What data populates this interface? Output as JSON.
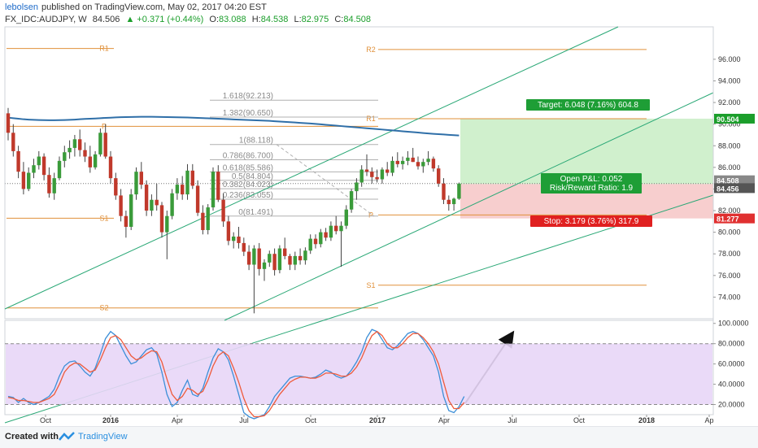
{
  "header": {
    "author": "lebolsen",
    "published": "published on TradingView.com, May 02, 2017 04:20 EST",
    "symbol": "FX_IDC:AUDJPY, W",
    "last": "84.506",
    "change": "▲ +0.371 (+0.44%)",
    "open_label": "O:",
    "open": "83.088",
    "high_label": "H:",
    "high": "84.538",
    "low_label": "L:",
    "low": "82.975",
    "close_label": "C:",
    "close": "84.508"
  },
  "footer": {
    "created_with": "Created with",
    "brand": "TradingView"
  },
  "colors": {
    "up": "#3a9b3a",
    "down": "#c0392b",
    "ma": "#2f6fa8",
    "channel": "#2aa876",
    "pivot": "#e0903a",
    "fib": "#b0b0b0",
    "target_zone": "#c8edc4",
    "stop_zone": "#f6c6c6",
    "stoch_k": "#3c8fd8",
    "stoch_d": "#ef5a3a",
    "stoch_band": "#e8d6f7"
  },
  "chart_data": [
    {
      "type": "candlestick",
      "ylim": [
        72,
        99
      ],
      "y_ticks": [
        "74.000",
        "76.000",
        "78.000",
        "80.000",
        "82.000",
        "84.000",
        "86.000",
        "88.000",
        "90.000",
        "92.000",
        "94.000",
        "96.000"
      ],
      "x_ticks": [
        "Oct",
        "2016",
        "Apr",
        "Jul",
        "Oct",
        "2017",
        "Apr",
        "Jul",
        "Oct",
        "2018",
        "Ap"
      ],
      "price_tags": [
        {
          "label": "90.504",
          "value": 90.504,
          "color": "#1b9e2b"
        },
        {
          "label": "84.508",
          "value": 84.508,
          "color": "#888888"
        },
        {
          "label": "84.456",
          "value": 84.456,
          "color": "#555555"
        },
        {
          "label": "81.277",
          "value": 81.277,
          "color": "#e03030"
        }
      ],
      "pivots": [
        {
          "label": "R1",
          "value": 97.0
        },
        {
          "label": "P",
          "value": 89.8
        },
        {
          "label": "S1",
          "value": 81.3
        },
        {
          "label": "S2",
          "value": 73.0
        },
        {
          "label": "R2",
          "value": 96.9
        },
        {
          "label": "R1",
          "value": 90.5
        },
        {
          "label": "P",
          "value": 81.6
        },
        {
          "label": "S1",
          "value": 75.1
        }
      ],
      "fib_levels": [
        {
          "label": "1.618(92.213)",
          "value": 92.213
        },
        {
          "label": "1.382(90.650)",
          "value": 90.65
        },
        {
          "label": "1(88.118)",
          "value": 88.118
        },
        {
          "label": "0.786(86.700)",
          "value": 86.7
        },
        {
          "label": "0.618(85.586)",
          "value": 85.586
        },
        {
          "label": "0.5(84.804)",
          "value": 84.804
        },
        {
          "label": "0.382(84.023)",
          "value": 84.023
        },
        {
          "label": "0.236(83.055)",
          "value": 83.055
        },
        {
          "label": "0(81.491)",
          "value": 81.491
        }
      ],
      "position": {
        "target_label": "Target: 6.048 (7.16%) 604.8",
        "pnl_label": "Open P&L: 0.052",
        "rr_label": "Risk/Reward Ratio: 1.9",
        "stop_label": "Stop: 3.179 (3.76%) 317.9",
        "entry": 84.46,
        "target": 90.504,
        "stop": 81.277
      },
      "ohlc": [
        [
          91.0,
          91.5,
          88.5,
          89.2
        ],
        [
          89.2,
          90.0,
          87.0,
          87.5
        ],
        [
          87.5,
          88.0,
          85.0,
          85.6
        ],
        [
          85.6,
          86.5,
          83.5,
          84.0
        ],
        [
          84.0,
          86.0,
          83.8,
          85.5
        ],
        [
          85.5,
          86.8,
          85.0,
          86.2
        ],
        [
          86.2,
          87.5,
          85.8,
          87.0
        ],
        [
          87.0,
          87.3,
          84.8,
          85.3
        ],
        [
          85.3,
          86.0,
          83.2,
          83.6
        ],
        [
          83.6,
          85.5,
          83.0,
          85.0
        ],
        [
          85.0,
          87.0,
          84.8,
          86.6
        ],
        [
          86.6,
          88.0,
          86.0,
          87.4
        ],
        [
          87.4,
          88.5,
          86.8,
          87.8
        ],
        [
          87.8,
          89.0,
          87.0,
          88.6
        ],
        [
          88.6,
          89.5,
          87.0,
          87.6
        ],
        [
          87.6,
          88.3,
          86.5,
          87.0
        ],
        [
          87.0,
          88.0,
          85.5,
          86.0
        ],
        [
          86.0,
          87.5,
          85.8,
          87.2
        ],
        [
          87.2,
          89.6,
          87.0,
          89.2
        ],
        [
          89.2,
          90.0,
          86.8,
          87.0
        ],
        [
          87.0,
          87.5,
          84.5,
          85.0
        ],
        [
          85.0,
          85.5,
          83.0,
          83.4
        ],
        [
          83.4,
          84.0,
          81.0,
          81.5
        ],
        [
          81.5,
          82.0,
          79.5,
          80.5
        ],
        [
          80.5,
          84.0,
          80.2,
          83.5
        ],
        [
          83.5,
          86.0,
          83.0,
          85.6
        ],
        [
          85.6,
          86.5,
          84.0,
          84.4
        ],
        [
          84.4,
          84.8,
          81.5,
          82.0
        ],
        [
          82.0,
          83.5,
          81.5,
          83.0
        ],
        [
          83.0,
          84.5,
          82.0,
          82.5
        ],
        [
          82.5,
          82.8,
          79.5,
          80.0
        ],
        [
          80.0,
          82.0,
          77.5,
          81.5
        ],
        [
          81.5,
          84.0,
          81.2,
          83.6
        ],
        [
          83.6,
          85.0,
          83.0,
          84.4
        ],
        [
          84.4,
          85.2,
          83.0,
          83.5
        ],
        [
          83.5,
          86.3,
          83.0,
          85.7
        ],
        [
          85.7,
          86.3,
          84.0,
          84.3
        ],
        [
          84.3,
          84.8,
          81.5,
          81.8
        ],
        [
          81.8,
          82.5,
          79.8,
          80.2
        ],
        [
          80.2,
          82.6,
          79.8,
          82.3
        ],
        [
          82.3,
          86.0,
          82.0,
          85.6
        ],
        [
          85.6,
          86.2,
          82.8,
          83.0
        ],
        [
          83.0,
          83.6,
          80.5,
          81.0
        ],
        [
          81.0,
          81.5,
          78.8,
          79.2
        ],
        [
          79.2,
          80.0,
          78.5,
          79.6
        ],
        [
          79.6,
          80.5,
          78.5,
          79.0
        ],
        [
          79.0,
          79.5,
          77.8,
          78.2
        ],
        [
          78.2,
          78.8,
          76.5,
          77.0
        ],
        [
          77.0,
          78.8,
          72.5,
          78.5
        ],
        [
          78.5,
          79.0,
          76.0,
          76.6
        ],
        [
          76.6,
          77.5,
          75.5,
          77.2
        ],
        [
          77.2,
          78.3,
          76.8,
          78.0
        ],
        [
          78.0,
          78.5,
          76.0,
          76.5
        ],
        [
          76.5,
          78.8,
          76.2,
          78.5
        ],
        [
          78.5,
          79.5,
          77.5,
          77.8
        ],
        [
          77.8,
          78.0,
          76.5,
          77.0
        ],
        [
          77.0,
          78.2,
          76.5,
          77.8
        ],
        [
          77.8,
          78.5,
          77.0,
          77.4
        ],
        [
          77.4,
          78.6,
          77.0,
          78.3
        ],
        [
          78.3,
          79.8,
          78.0,
          79.4
        ],
        [
          79.4,
          79.8,
          78.5,
          78.9
        ],
        [
          78.9,
          80.3,
          78.6,
          80.0
        ],
        [
          80.0,
          80.4,
          79.2,
          79.5
        ],
        [
          79.5,
          81.0,
          79.2,
          80.6
        ],
        [
          80.6,
          81.5,
          79.8,
          80.1
        ],
        [
          80.1,
          81.0,
          76.8,
          80.6
        ],
        [
          80.6,
          82.5,
          80.3,
          82.1
        ],
        [
          82.1,
          84.0,
          81.8,
          83.8
        ],
        [
          83.8,
          85.0,
          83.0,
          84.6
        ],
        [
          84.6,
          86.2,
          84.2,
          85.8
        ],
        [
          85.8,
          87.2,
          85.2,
          85.6
        ],
        [
          85.6,
          86.0,
          84.5,
          85.1
        ],
        [
          85.1,
          85.8,
          84.6,
          84.9
        ],
        [
          84.9,
          86.0,
          84.5,
          85.8
        ],
        [
          85.8,
          86.5,
          85.2,
          85.5
        ],
        [
          85.5,
          87.0,
          85.2,
          86.6
        ],
        [
          86.6,
          87.4,
          86.0,
          86.3
        ],
        [
          86.3,
          87.0,
          85.8,
          86.6
        ],
        [
          86.6,
          87.5,
          86.2,
          86.9
        ],
        [
          86.9,
          87.8,
          86.5,
          86.5
        ],
        [
          86.5,
          87.0,
          85.8,
          86.1
        ],
        [
          86.1,
          86.8,
          85.5,
          86.5
        ],
        [
          86.5,
          87.5,
          86.2,
          86.8
        ],
        [
          86.8,
          87.0,
          85.6,
          85.9
        ],
        [
          85.9,
          86.2,
          84.2,
          84.5
        ],
        [
          84.5,
          85.0,
          82.6,
          83.0
        ],
        [
          83.0,
          83.4,
          82.0,
          82.6
        ],
        [
          82.6,
          83.2,
          82.0,
          83.1
        ],
        [
          83.1,
          84.6,
          83.0,
          84.5
        ]
      ],
      "ma": [
        90.6,
        90.55,
        90.5,
        90.45,
        90.42,
        90.4,
        90.38,
        90.37,
        90.36,
        90.36,
        90.37,
        90.38,
        90.4,
        90.42,
        90.45,
        90.48,
        90.5,
        90.52,
        90.55,
        90.58,
        90.6,
        90.62,
        90.64,
        90.65,
        90.66,
        90.67,
        90.68,
        90.68,
        90.68,
        90.67,
        90.66,
        90.65,
        90.64,
        90.63,
        90.62,
        90.61,
        90.6,
        90.58,
        90.56,
        90.54,
        90.52,
        90.5,
        90.48,
        90.46,
        90.44,
        90.42,
        90.4,
        90.38,
        90.36,
        90.34,
        90.32,
        90.3,
        90.27,
        90.24,
        90.21,
        90.18,
        90.15,
        90.12,
        90.09,
        90.06,
        90.02,
        89.98,
        89.94,
        89.9,
        89.86,
        89.82,
        89.78,
        89.74,
        89.7,
        89.66,
        89.62,
        89.58,
        89.54,
        89.5,
        89.46,
        89.42,
        89.38,
        89.34,
        89.3,
        89.26,
        89.22,
        89.18,
        89.14,
        89.1,
        89.07,
        89.04,
        89.01,
        88.98,
        88.95
      ]
    },
    {
      "type": "line",
      "ylim": [
        10,
        103
      ],
      "y_ticks": [
        "20.0000",
        "40.0000",
        "60.0000",
        "80.0000",
        "100.0000"
      ],
      "bands": [
        20,
        80
      ],
      "series": [
        {
          "values": [
            28,
            27,
            22,
            26,
            22,
            20,
            22,
            25,
            28,
            35,
            48,
            58,
            62,
            63,
            58,
            52,
            48,
            56,
            70,
            85,
            92,
            88,
            78,
            68,
            60,
            62,
            68,
            74,
            76,
            70,
            52,
            30,
            18,
            22,
            34,
            44,
            30,
            28,
            36,
            52,
            66,
            75,
            72,
            64,
            48,
            30,
            12,
            8,
            6,
            8,
            10,
            18,
            28,
            34,
            40,
            46,
            48,
            48,
            47,
            46,
            47,
            50,
            54,
            52,
            48,
            46,
            48,
            54,
            62,
            72,
            86,
            94,
            92,
            84,
            76,
            74,
            78,
            84,
            90,
            92,
            90,
            84,
            76,
            68,
            52,
            28,
            14,
            12,
            18,
            28
          ]
        },
        {
          "values": [
            27,
            26,
            24,
            24,
            23,
            22,
            22,
            24,
            26,
            30,
            40,
            52,
            58,
            61,
            60,
            56,
            52,
            54,
            64,
            76,
            86,
            88,
            84,
            76,
            68,
            64,
            66,
            70,
            73,
            72,
            62,
            45,
            30,
            24,
            28,
            36,
            34,
            30,
            33,
            44,
            58,
            68,
            72,
            68,
            56,
            42,
            26,
            14,
            8,
            8,
            9,
            14,
            22,
            30,
            36,
            42,
            45,
            47,
            47,
            46,
            46,
            48,
            51,
            51,
            50,
            48,
            48,
            51,
            57,
            66,
            78,
            88,
            92,
            88,
            80,
            76,
            76,
            80,
            86,
            90,
            90,
            86,
            80,
            72,
            60,
            42,
            24,
            16,
            16,
            22
          ]
        }
      ]
    }
  ]
}
